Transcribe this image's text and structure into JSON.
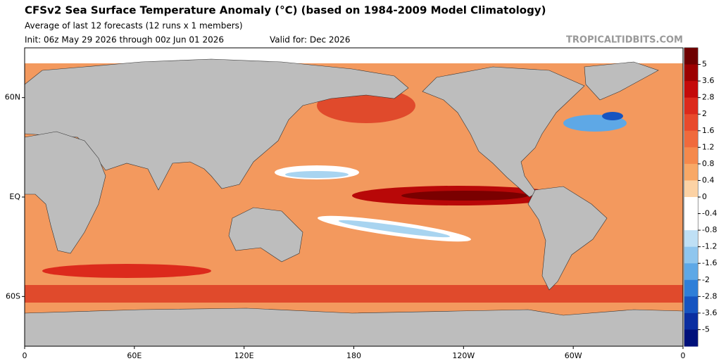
{
  "header": {
    "title": "CFSv2 Sea Surface Temperature Anomaly (°C) (based on 1984-2009 Model Climatology)",
    "subtitle": "Average of last 12 forecasts (12 runs x 1 members)",
    "init": "Init: 06z May 29 2026 through 00z Jun 01 2026",
    "valid": "Valid for: Dec 2026",
    "watermark": "TROPICALTIDBITS.COM"
  },
  "map": {
    "xlim": [
      0,
      360
    ],
    "ylim": [
      -90,
      90
    ],
    "xticks": [
      0,
      {
        "value": 60,
        "label": "60E"
      },
      {
        "value": 120,
        "label": "120E"
      },
      180,
      {
        "value": 240,
        "label": "120W"
      },
      {
        "value": 300,
        "label": "60W"
      },
      {
        "value": 360,
        "label": "0"
      }
    ],
    "yticks": [
      {
        "value": 60,
        "label": "60N"
      },
      {
        "value": 0,
        "label": "EQ"
      },
      {
        "value": -60,
        "label": "60S"
      }
    ]
  },
  "colorbar": {
    "ticks": [
      5,
      3.6,
      2.8,
      2,
      1.6,
      1.2,
      0.8,
      0.4,
      0,
      -0.4,
      -0.8,
      -1.2,
      -1.6,
      -2,
      -2.8,
      -3.6,
      -5
    ],
    "colors": [
      "#6e0000",
      "#9c0000",
      "#c40a0a",
      "#dc2a1c",
      "#e84a2c",
      "#f06a3c",
      "#f5894c",
      "#f8a866",
      "#fcd2a4",
      "#ffffff",
      "#ffffff",
      "#bfe0f5",
      "#8fc6ee",
      "#5ea8e6",
      "#2f7fd8",
      "#1654c0",
      "#0a2ea0",
      "#00107a"
    ]
  }
}
